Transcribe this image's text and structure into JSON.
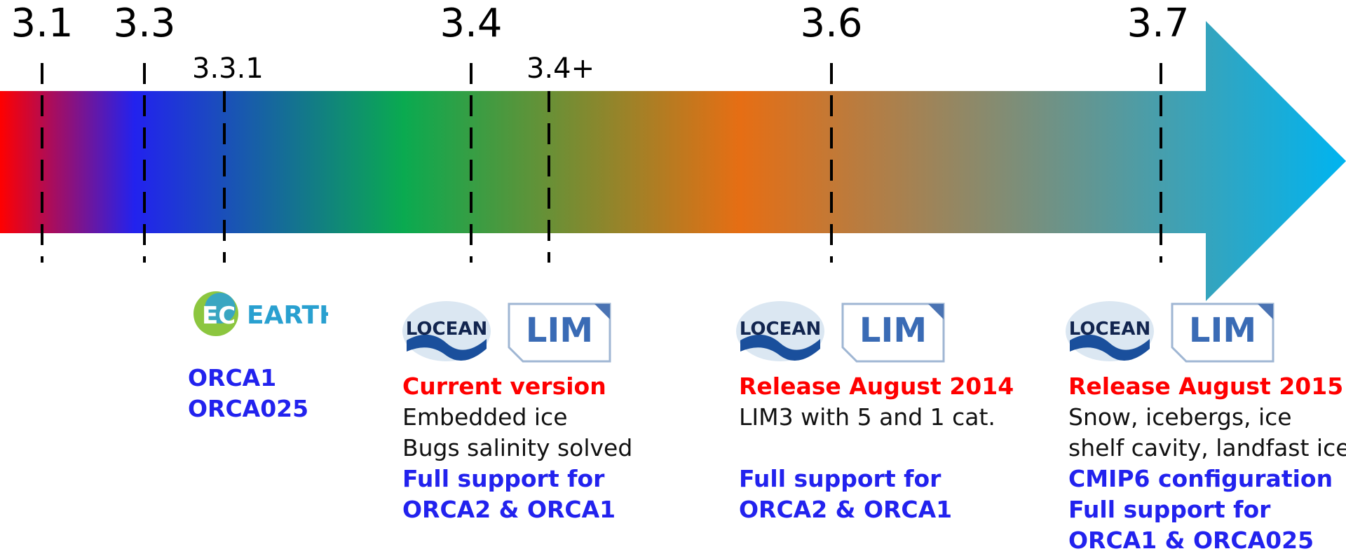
{
  "versions": {
    "v31": "3.1",
    "v33": "3.3",
    "v331": "3.3.1",
    "v34": "3.4",
    "v34plus": "3.4+",
    "v36": "3.6",
    "v37": "3.7"
  },
  "colors": {
    "gradient": [
      "#ff0000",
      "#2222ee",
      "#0aaa50",
      "#e66e14",
      "#00b4f0"
    ],
    "red": "#ff0000",
    "blue": "#2222ee"
  },
  "ecearth": {
    "logo_text": "EC EARTH",
    "lines": [
      "ORCA1",
      "ORCA025"
    ]
  },
  "col34": {
    "line1": "Current version",
    "line2": "Embedded ice",
    "line3": "Bugs salinity solved",
    "line4": "Full support for",
    "line5": "ORCA2 & ORCA1"
  },
  "col36": {
    "line1": "Release August 2014",
    "line2": "LIM3 with 5 and 1 cat.",
    "line3": "Full support for",
    "line4": "ORCA2 & ORCA1"
  },
  "col37": {
    "line1": "Release August 2015",
    "line2": "Snow, icebergs, ice",
    "line3": "shelf cavity, landfast ice",
    "line4": "CMIP6 configuration",
    "line5": "Full support for",
    "line6": "ORCA1 & ORCA025"
  },
  "logos": {
    "locean": "LOCEAN",
    "lim": "LIM"
  }
}
